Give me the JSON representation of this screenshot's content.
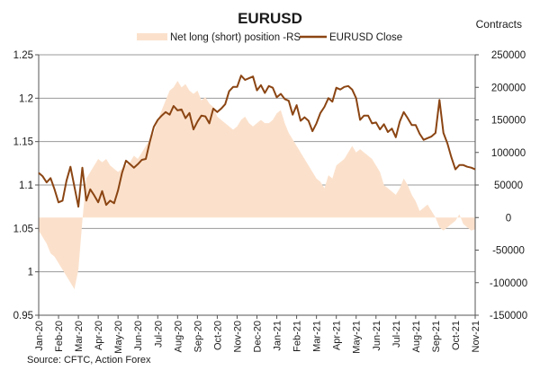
{
  "chart_data": {
    "type": "line",
    "title": "EURUSD",
    "right_axis_unit_label": "Contracts",
    "source": "Source: CFTC, Action Forex",
    "legend": [
      {
        "name": "Net long (short) position -RS",
        "kind": "area",
        "color": "#fbe1cc"
      },
      {
        "name": "EURUSD Close",
        "kind": "line",
        "color": "#8b4513"
      }
    ],
    "legend_placement": "top-center",
    "left_axis": {
      "min": 0.95,
      "max": 1.25,
      "ticks": [
        "0.95",
        "1",
        "1.05",
        "1.1",
        "1.15",
        "1.2",
        "1.25"
      ]
    },
    "right_axis": {
      "min": -150000,
      "max": 250000,
      "ticks": [
        "-150000",
        "-100000",
        "-50000",
        "0",
        "50000",
        "100000",
        "150000",
        "200000",
        "250000"
      ]
    },
    "x_tick_labels": [
      "Jan-20",
      "Feb-20",
      "Mar-20",
      "Apr-20",
      "May-20",
      "Jun-20",
      "Jul-20",
      "Aug-20",
      "Sep-20",
      "Oct-20",
      "Nov-20",
      "Dec-20",
      "Jan-21",
      "Feb-21",
      "Mar-21",
      "Apr-21",
      "May-21",
      "Jun-21",
      "Jul-21",
      "Aug-21",
      "Sep-21",
      "Oct-21",
      "Nov-21"
    ],
    "grid": "horizontal",
    "series": [
      {
        "name": "Net long (short) position -RS",
        "axis": "right",
        "x": [
          0,
          0.2,
          0.4,
          0.6,
          0.8,
          1.0,
          1.2,
          1.4,
          1.6,
          1.8,
          2.0,
          2.2,
          2.4,
          2.6,
          2.8,
          3.0,
          3.2,
          3.4,
          3.6,
          3.8,
          4.0,
          4.2,
          4.4,
          4.6,
          4.8,
          5.0,
          5.2,
          5.4,
          5.6,
          5.8,
          6.0,
          6.2,
          6.4,
          6.6,
          6.8,
          7.0,
          7.2,
          7.4,
          7.6,
          7.8,
          8.0,
          8.2,
          8.4,
          8.6,
          8.8,
          9.0,
          9.2,
          9.4,
          9.6,
          9.8,
          10.0,
          10.2,
          10.4,
          10.6,
          10.8,
          11.0,
          11.2,
          11.4,
          11.6,
          11.8,
          12.0,
          12.2,
          12.4,
          12.6,
          12.8,
          13.0,
          13.2,
          13.4,
          13.6,
          13.8,
          14.0,
          14.2,
          14.4,
          14.6,
          14.8,
          15.0,
          15.2,
          15.4,
          15.6,
          15.8,
          16.0,
          16.2,
          16.4,
          16.6,
          16.8,
          17.0,
          17.2,
          17.4,
          17.6,
          17.8,
          18.0,
          18.2,
          18.4,
          18.6,
          18.8,
          19.0,
          19.2,
          19.4,
          19.6,
          19.8,
          20.0,
          20.2,
          20.4,
          20.6,
          20.8,
          21.0,
          21.2,
          21.4,
          21.6,
          21.8,
          22.0
        ],
        "values": [
          -20000,
          -30000,
          -40000,
          -55000,
          -60000,
          -70000,
          -80000,
          -90000,
          -100000,
          -110000,
          -80000,
          -5000,
          60000,
          70000,
          80000,
          90000,
          85000,
          90000,
          80000,
          75000,
          70000,
          75000,
          80000,
          85000,
          95000,
          90000,
          100000,
          110000,
          120000,
          130000,
          150000,
          165000,
          180000,
          195000,
          200000,
          210000,
          200000,
          205000,
          195000,
          190000,
          195000,
          180000,
          185000,
          175000,
          170000,
          155000,
          150000,
          145000,
          140000,
          135000,
          140000,
          150000,
          155000,
          145000,
          140000,
          145000,
          150000,
          145000,
          145000,
          150000,
          160000,
          165000,
          145000,
          130000,
          120000,
          110000,
          100000,
          90000,
          80000,
          70000,
          60000,
          55000,
          45000,
          65000,
          60000,
          80000,
          85000,
          90000,
          100000,
          110000,
          100000,
          105000,
          100000,
          95000,
          90000,
          80000,
          70000,
          50000,
          45000,
          40000,
          35000,
          45000,
          60000,
          50000,
          35000,
          25000,
          10000,
          15000,
          20000,
          10000,
          0,
          -15000,
          -20000,
          -15000,
          -10000,
          -5000,
          5000,
          -10000,
          -15000,
          -20000,
          -18000
        ],
        "color": "#fbe1cc"
      },
      {
        "name": "EURUSD Close",
        "axis": "left",
        "x": [
          0,
          0.2,
          0.4,
          0.6,
          0.8,
          1.0,
          1.2,
          1.4,
          1.6,
          1.8,
          2.0,
          2.2,
          2.4,
          2.6,
          2.8,
          3.0,
          3.2,
          3.4,
          3.6,
          3.8,
          4.0,
          4.2,
          4.4,
          4.6,
          4.8,
          5.0,
          5.2,
          5.4,
          5.6,
          5.8,
          6.0,
          6.2,
          6.4,
          6.6,
          6.8,
          7.0,
          7.2,
          7.4,
          7.6,
          7.8,
          8.0,
          8.2,
          8.4,
          8.6,
          8.8,
          9.0,
          9.2,
          9.4,
          9.6,
          9.8,
          10.0,
          10.2,
          10.4,
          10.6,
          10.8,
          11.0,
          11.2,
          11.4,
          11.6,
          11.8,
          12.0,
          12.2,
          12.4,
          12.6,
          12.8,
          13.0,
          13.2,
          13.4,
          13.6,
          13.8,
          14.0,
          14.2,
          14.4,
          14.6,
          14.8,
          15.0,
          15.2,
          15.4,
          15.6,
          15.8,
          16.0,
          16.2,
          16.4,
          16.6,
          16.8,
          17.0,
          17.2,
          17.4,
          17.6,
          17.8,
          18.0,
          18.2,
          18.4,
          18.6,
          18.8,
          19.0,
          19.2,
          19.4,
          19.6,
          19.8,
          20.0,
          20.2,
          20.4,
          20.6,
          20.8,
          21.0,
          21.2,
          21.4,
          21.6,
          21.8,
          22.0
        ],
        "values": [
          1.114,
          1.11,
          1.103,
          1.108,
          1.095,
          1.08,
          1.082,
          1.105,
          1.121,
          1.098,
          1.075,
          1.12,
          1.082,
          1.095,
          1.088,
          1.08,
          1.093,
          1.077,
          1.082,
          1.079,
          1.094,
          1.114,
          1.128,
          1.124,
          1.12,
          1.124,
          1.129,
          1.13,
          1.15,
          1.167,
          1.175,
          1.18,
          1.184,
          1.181,
          1.191,
          1.186,
          1.187,
          1.177,
          1.183,
          1.164,
          1.173,
          1.18,
          1.179,
          1.171,
          1.188,
          1.184,
          1.188,
          1.193,
          1.208,
          1.213,
          1.213,
          1.226,
          1.221,
          1.223,
          1.225,
          1.209,
          1.215,
          1.206,
          1.214,
          1.212,
          1.201,
          1.205,
          1.199,
          1.197,
          1.181,
          1.192,
          1.174,
          1.178,
          1.174,
          1.162,
          1.171,
          1.183,
          1.19,
          1.2,
          1.196,
          1.212,
          1.21,
          1.213,
          1.214,
          1.21,
          1.2,
          1.175,
          1.18,
          1.18,
          1.171,
          1.172,
          1.164,
          1.17,
          1.161,
          1.165,
          1.155,
          1.173,
          1.184,
          1.177,
          1.169,
          1.169,
          1.159,
          1.152,
          1.154,
          1.156,
          1.16,
          1.198,
          1.16,
          1.148,
          1.132,
          1.118,
          1.123,
          1.123,
          1.121,
          1.12,
          1.118
        ]
      }
    ]
  }
}
